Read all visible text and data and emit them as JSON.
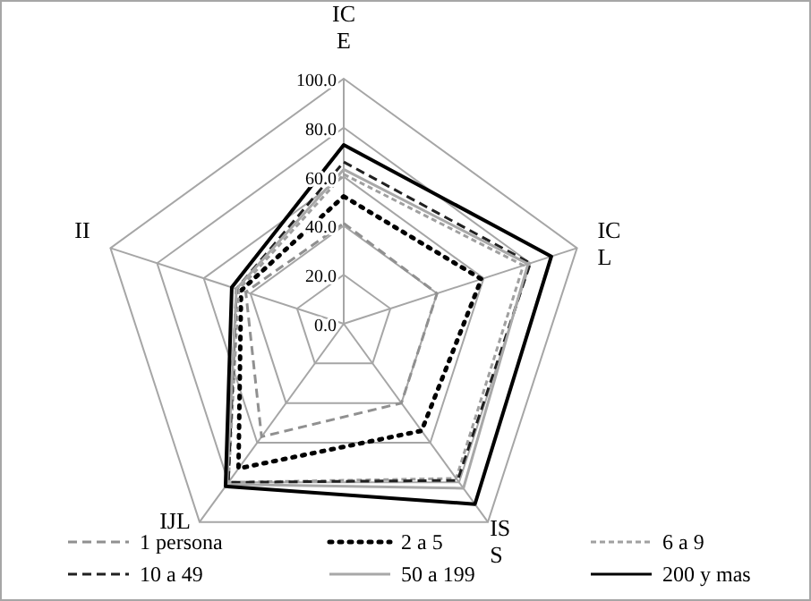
{
  "chart_data": {
    "type": "radar",
    "categories": [
      "ICE",
      "ICL",
      "ISS",
      "IJL",
      "II"
    ],
    "ylim": [
      0,
      100
    ],
    "yticks": [
      {
        "value": 0,
        "label": "0.0"
      },
      {
        "value": 20,
        "label": "20.0"
      },
      {
        "value": 40,
        "label": "40.0"
      },
      {
        "value": 60,
        "label": "60.0"
      },
      {
        "value": 80,
        "label": "80.0"
      },
      {
        "value": 100,
        "label": "100.0"
      }
    ],
    "grid": true,
    "legend": "bottom",
    "series": [
      {
        "name": "1 persona",
        "color": "#909090",
        "line_style": "dashed",
        "values": [
          41,
          40,
          40,
          57,
          42
        ]
      },
      {
        "name": "2 a 5",
        "color": "#000000",
        "line_style": "dotted",
        "values": [
          52,
          59,
          54,
          73,
          44
        ]
      },
      {
        "name": "6 a 9",
        "color": "#a0a0a0",
        "line_style": "dashed",
        "values": [
          61,
          77,
          78,
          80,
          45
        ]
      },
      {
        "name": "10 a 49",
        "color": "#202020",
        "line_style": "dashed",
        "values": [
          66,
          80,
          79,
          80,
          46
        ]
      },
      {
        "name": "50 a 199",
        "color": "#a8a8a8",
        "line_style": "solid",
        "values": [
          63,
          79,
          83,
          81,
          46
        ]
      },
      {
        "name": "200 y mas",
        "color": "#000000",
        "line_style": "solid",
        "values": [
          73,
          89,
          91,
          82,
          48
        ]
      }
    ]
  }
}
